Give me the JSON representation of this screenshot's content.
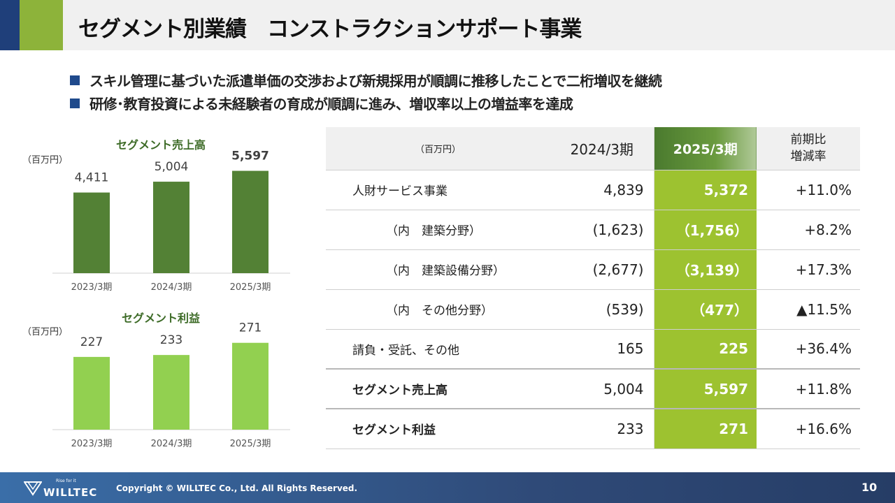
{
  "header": {
    "title": "セグメント別業績　コンストラクションサポート事業",
    "accent_colors": [
      "#1f3f7a",
      "#8db33a"
    ]
  },
  "bullets": [
    "スキル管理に基づいた派遣単価の交渉および新規採用が順調に推移したことで二桁増収を継続",
    "研修･教育投資による未経験者の育成が順調に進み、増収率以上の増益率を達成"
  ],
  "chart_data": [
    {
      "type": "bar",
      "title": "セグメント売上高",
      "unit": "（百万円）",
      "categories": [
        "2023/3期",
        "2024/3期",
        "2025/3期"
      ],
      "values": [
        4411,
        5004,
        5597
      ],
      "value_labels": [
        "4,411",
        "5,004",
        "5,597"
      ],
      "highlight_last_label_bold": true,
      "color": "#538135",
      "ylim": [
        0,
        6000
      ]
    },
    {
      "type": "bar",
      "title": "セグメント利益",
      "unit": "（百万円）",
      "categories": [
        "2023/3期",
        "2024/3期",
        "2025/3期"
      ],
      "values": [
        227,
        233,
        271
      ],
      "value_labels": [
        "227",
        "233",
        "271"
      ],
      "highlight_last_label_bold": false,
      "color": "#92d050",
      "ylim": [
        0,
        290
      ]
    }
  ],
  "table": {
    "header": {
      "unit": "（百万円）",
      "prev": "2024/3期",
      "cur": "2025/3期",
      "rate_line1": "前期比",
      "rate_line2": "増減率"
    },
    "rows": [
      {
        "label": "人財サービス事業",
        "prev": "4,839",
        "cur": "5,372",
        "rate": "+11.0%"
      },
      {
        "label": "（内　建築分野）",
        "prev": "(1,623)",
        "cur": "（1,756）",
        "rate": "+8.2%"
      },
      {
        "label": "（内　建築設備分野）",
        "prev": "(2,677)",
        "cur": "（3,139）",
        "rate": "+17.3%"
      },
      {
        "label": "（内　その他分野）",
        "prev": "(539)",
        "cur": "（477）",
        "rate": "▲11.5%"
      },
      {
        "label": "請負・受託、その他",
        "prev": "165",
        "cur": "225",
        "rate": "+36.4%"
      },
      {
        "label": "セグメント売上高",
        "prev": "5,004",
        "cur": "5,597",
        "rate": "+11.8%"
      },
      {
        "label": "セグメント利益",
        "prev": "233",
        "cur": "271",
        "rate": "+16.6%"
      }
    ]
  },
  "footer": {
    "logo_text": "WILLTEC",
    "logo_tagline": "Rise for it",
    "copyright": "Copyright © WILLTEC Co., Ltd. All Rights Reserved.",
    "page_number": "10"
  }
}
